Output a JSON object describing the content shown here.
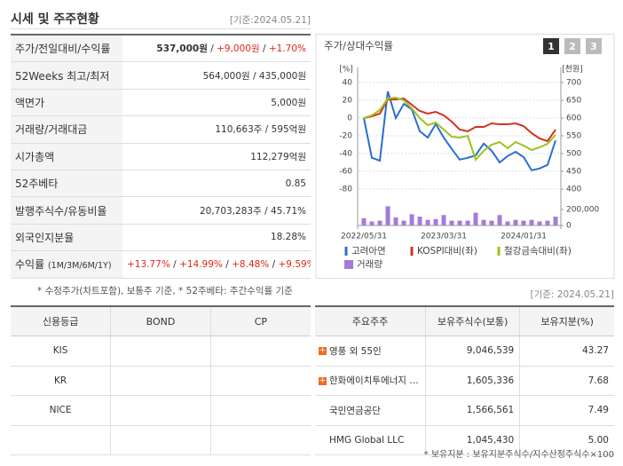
{
  "header": {
    "title": "시세 및 주주현황",
    "date": "[기준:2024.05.21]"
  },
  "quote": {
    "rows": [
      {
        "label": "주가/전일대비/수익률",
        "value": [
          "537,000원",
          " / ",
          "+9,000원",
          " / ",
          "+1.70%"
        ]
      },
      {
        "label": "52Weeks 최고/최저",
        "value": [
          "564,000원 / 435,000원"
        ]
      },
      {
        "label": "액면가",
        "value": [
          "5,000원"
        ]
      },
      {
        "label": "거래량/거래대금",
        "value": [
          "110,663주 / 595억원"
        ]
      },
      {
        "label": "시가총액",
        "value": [
          "112,279억원"
        ]
      },
      {
        "label": "52주베타",
        "value": [
          "0.85"
        ]
      },
      {
        "label": "발행주식수/유동비율",
        "value": [
          "20,703,283주 / 45.71%"
        ]
      },
      {
        "label": "외국인지분율",
        "value": [
          "18.28%"
        ]
      },
      {
        "label": "수익률",
        "label_note": "(1M/3M/6M/1Y)",
        "value": [
          "+13.77%",
          " / ",
          "+14.99%",
          " / ",
          "+8.48%",
          " / ",
          "+9.59%"
        ]
      }
    ],
    "note": "* 수정주가(차트포함), 보통주 기준, * 52주베타: 주간수익률 기준"
  },
  "chart_data": {
    "type": "line",
    "title": "주가/상대수익률",
    "tabs": [
      "1",
      "2",
      "3"
    ],
    "active_tab": 0,
    "ylabel": "[%]",
    "y2label": "[천원]",
    "categories": [
      "2022/05/31",
      null,
      null,
      null,
      null,
      null,
      null,
      null,
      null,
      null,
      "2023/03/31",
      null,
      null,
      null,
      null,
      null,
      null,
      null,
      null,
      null,
      "2024/01/31",
      null,
      null,
      null,
      null
    ],
    "ylim": [
      -80,
      40
    ],
    "yticks": [
      40,
      20,
      0,
      -20,
      -40,
      -60,
      -80
    ],
    "y2lim": [
      400,
      700
    ],
    "y2ticks": [
      700,
      650,
      600,
      550,
      500,
      450,
      400
    ],
    "y3lim": [
      0,
      200000
    ],
    "y3ticks": [
      {
        "value": 200000,
        "label": "200,000"
      },
      0
    ],
    "grid": true,
    "series": [
      {
        "name": "고려아연",
        "color": "#2a6ed0",
        "axis": "y2",
        "values": [
          600,
          488,
          480,
          675,
          600,
          640,
          625,
          563,
          545,
          583,
          545,
          513,
          483,
          488,
          495,
          528,
          508,
          475,
          493,
          505,
          490,
          453,
          458,
          468,
          537
        ]
      },
      {
        "name": "KOSPI대비(좌)",
        "color": "#d4321f",
        "values": [
          0,
          2,
          5,
          21,
          21,
          22,
          15,
          8,
          5,
          7,
          3,
          -4,
          -13,
          -15,
          -10,
          -10,
          -6,
          -7,
          -7,
          -6,
          -9,
          -17,
          -23,
          -26,
          -13
        ]
      },
      {
        "name": "철강금속대비(좌)",
        "color": "#9bc41c",
        "values": [
          0,
          3,
          9,
          22,
          23,
          20,
          11,
          0,
          -8,
          -5,
          -13,
          -21,
          -22,
          -20,
          -47,
          -37,
          -30,
          -27,
          -34,
          -27,
          -31,
          -36,
          -33,
          -29,
          -19
        ]
      },
      {
        "name": "거래량",
        "color": "#a57bd6",
        "type": "bar",
        "axis": "y3",
        "values": [
          90000,
          50000,
          60000,
          240000,
          100000,
          60000,
          140000,
          110000,
          70000,
          80000,
          130000,
          60000,
          60000,
          60000,
          160000,
          70000,
          60000,
          130000,
          50000,
          70000,
          60000,
          70000,
          50000,
          60000,
          110000
        ]
      }
    ]
  },
  "bottom_date": "[기준: 2024.05.21]",
  "credit": {
    "header": [
      "신용등급",
      "BOND",
      "CP"
    ],
    "rows": [
      "KIS",
      "KR",
      "NICE"
    ]
  },
  "holders": {
    "header": [
      "주요주주",
      "보유주식수(보통)",
      "보유지분(%)"
    ],
    "rows": [
      {
        "name": "영풍 외 55인",
        "shares": "9,046,539",
        "pct": "43.27",
        "expandable": true
      },
      {
        "name": "한화에이치투에너지 …",
        "shares": "1,605,336",
        "pct": "7.68",
        "expandable": true
      },
      {
        "name": "국민연금공단",
        "shares": "1,566,561",
        "pct": "7.49",
        "expandable": false
      },
      {
        "name": "HMG Global LLC",
        "shares": "1,045,430",
        "pct": "5.00",
        "expandable": false
      }
    ],
    "note": "* 보유지분 : 보유지분주식수/지수산정주식수×100"
  }
}
